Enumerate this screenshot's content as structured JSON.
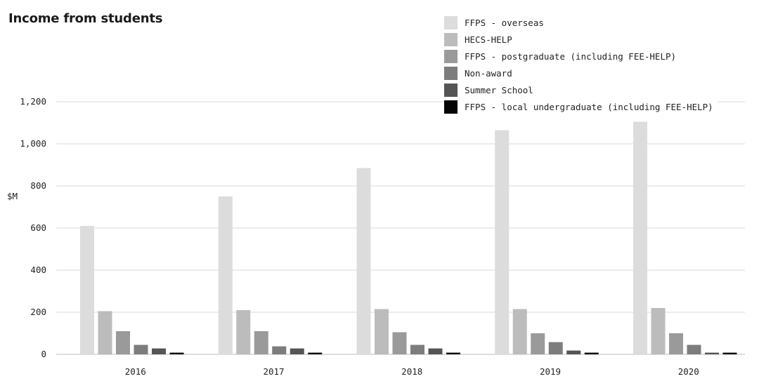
{
  "chart_data": {
    "type": "bar",
    "title": "Income from students",
    "ylabel": "$M",
    "xlabel": "",
    "ylim": [
      0,
      1200
    ],
    "yticks": [
      0,
      200,
      400,
      600,
      800,
      1000,
      1200
    ],
    "ytick_labels": [
      "0",
      "200",
      "400",
      "600",
      "800",
      "1,000",
      "1,200"
    ],
    "categories": [
      "2016",
      "2017",
      "2018",
      "2019",
      "2020"
    ],
    "grid": true,
    "legend_position": "top-right",
    "series": [
      {
        "name": "FFPS - overseas",
        "color": "#dcdcdd",
        "values": [
          610,
          750,
          885,
          1065,
          1105
        ]
      },
      {
        "name": "HECS-HELP",
        "color": "#bcbcbd",
        "values": [
          205,
          210,
          215,
          215,
          220
        ]
      },
      {
        "name": "FFPS - postgraduate (including FEE-HELP)",
        "color": "#9a9a9b",
        "values": [
          110,
          110,
          105,
          100,
          100
        ]
      },
      {
        "name": "Non-award",
        "color": "#7d7d7e",
        "values": [
          45,
          38,
          45,
          58,
          45
        ]
      },
      {
        "name": "Summer School",
        "color": "#555556",
        "values": [
          28,
          28,
          28,
          18,
          8
        ]
      },
      {
        "name": "FFPS - local undergraduate (including FEE-HELP)",
        "color": "#050505",
        "values": [
          8,
          8,
          8,
          8,
          8
        ]
      }
    ]
  }
}
